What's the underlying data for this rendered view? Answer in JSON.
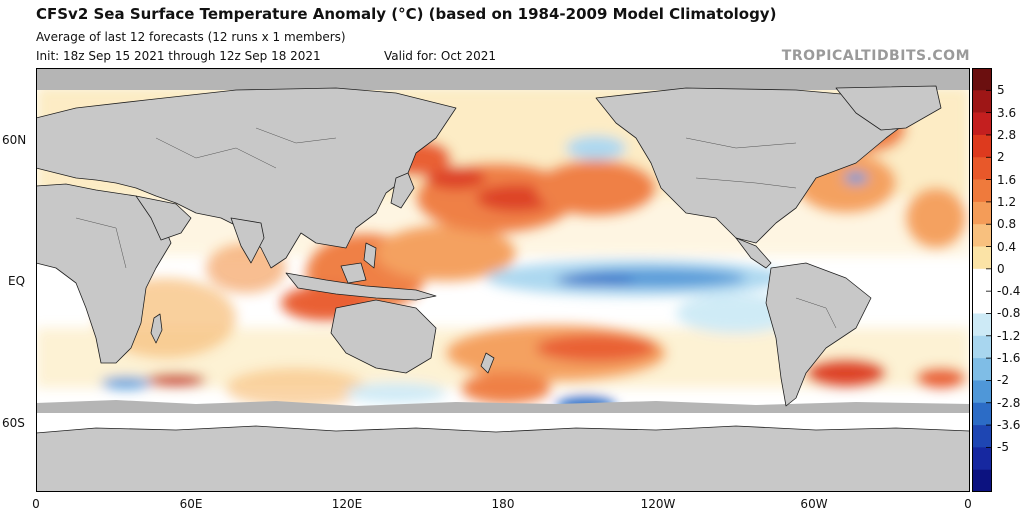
{
  "header": {
    "title": "CFSv2 Sea Surface Temperature Anomaly (°C) (based on 1984-2009 Model Climatology)",
    "subtitle": "Average of last 12 forecasts (12 runs x 1 members)",
    "init": "Init: 18z Sep 15 2021 through 12z Sep 18 2021",
    "valid": "Valid for: Oct 2021",
    "credit": "TROPICALTIDBITS.COM"
  },
  "map": {
    "lat_labels": [
      "60N",
      "EQ",
      "60S"
    ],
    "lon_labels": [
      "0",
      "60E",
      "120E",
      "180",
      "120W",
      "60W",
      "0"
    ]
  },
  "colorbar": {
    "tick_labels": [
      "5",
      "3.6",
      "2.8",
      "2",
      "1.6",
      "1.2",
      "0.8",
      "0.4",
      "0",
      "-0.4",
      "-0.8",
      "-1.2",
      "-1.6",
      "-2",
      "-2.8",
      "-3.6",
      "-5"
    ],
    "colors": [
      "#6b0f0f",
      "#9e1616",
      "#c41f1f",
      "#dd3a1e",
      "#e8582a",
      "#ef7a3c",
      "#f49c58",
      "#f8c07e",
      "#fbe3a6",
      "#ffffff",
      "#ffffff",
      "#cdeaf6",
      "#a8d6ef",
      "#7fbde6",
      "#4f97d8",
      "#2c6cc6",
      "#1e46b3",
      "#1628a0",
      "#0c1280"
    ]
  },
  "colors": {
    "land": "#c8c8c8",
    "land_border": "#202020",
    "ice": "#b5b5b5"
  }
}
